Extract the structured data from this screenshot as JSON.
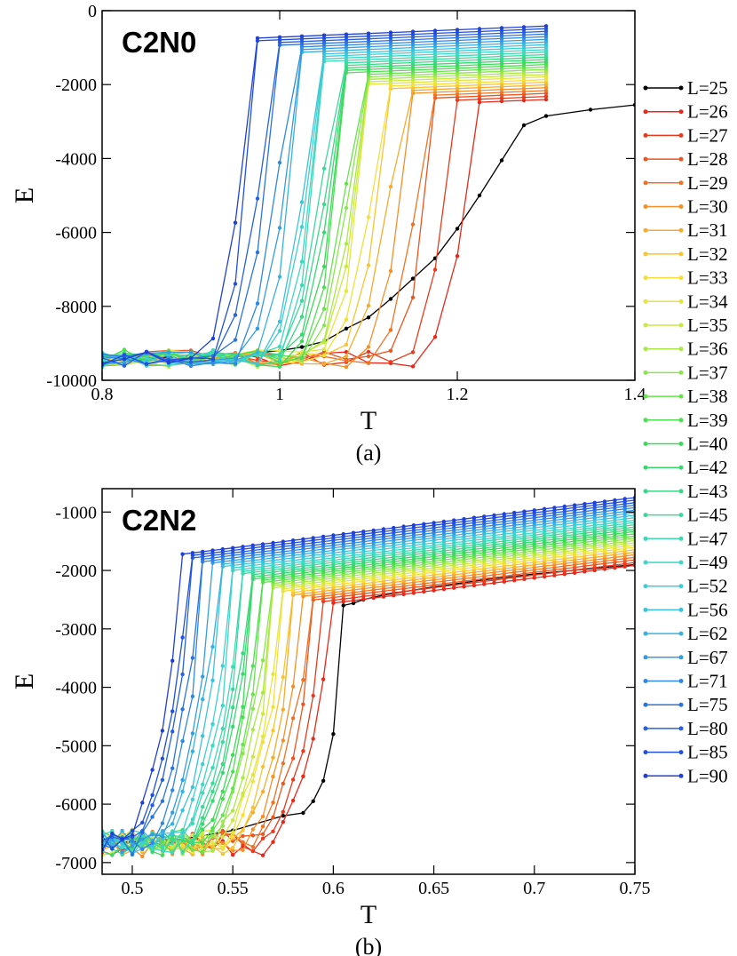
{
  "chart_data": [
    {
      "type": "line",
      "panel_label": "(a)",
      "title": "C2N0",
      "xlabel": "T",
      "ylabel": "E",
      "xlim": [
        0.8,
        1.4
      ],
      "ylim": [
        -10000,
        0
      ],
      "xticks": [
        0.8,
        1,
        1.2,
        1.4
      ],
      "xtick_labels": [
        "0.8",
        "1",
        "1.2",
        "1.4"
      ],
      "yticks": [
        -10000,
        -8000,
        -6000,
        -4000,
        -2000,
        0
      ],
      "ytick_labels": [
        "-10000",
        "-8000",
        "-6000",
        "-4000",
        "-2000",
        "0"
      ],
      "curve_model": {
        "kind": "energy_vs_T_transition",
        "T_low": -9450,
        "T_high_start": -2550,
        "T_high_step": 62,
        "T_high_slope": 1000,
        "t_start": 0.8,
        "t_end": 1.3,
        "dt": 0.025
      },
      "series": [
        {
          "name": "L=25",
          "color": "#000000",
          "x": [
            0.8,
            0.85,
            0.9,
            0.95,
            1.0,
            1.025,
            1.05,
            1.075,
            1.1,
            1.125,
            1.15,
            1.175,
            1.2,
            1.225,
            1.25,
            1.275,
            1.3,
            1.35,
            1.4
          ],
          "values": [
            -9450,
            -9400,
            -9350,
            -9300,
            -9200,
            -9100,
            -8950,
            -8600,
            -8300,
            -7800,
            -7250,
            -6700,
            -5900,
            -5000,
            -4050,
            -3100,
            -2850,
            -2680,
            -2550
          ]
        },
        {
          "name": "L=26",
          "color": "#e8281a",
          "transition": 1.215
        },
        {
          "name": "L=27",
          "color": "#e93a1d",
          "transition": 1.195
        },
        {
          "name": "L=28",
          "color": "#ec5520",
          "transition": 1.175
        },
        {
          "name": "L=29",
          "color": "#ef7324",
          "transition": 1.16
        },
        {
          "name": "L=30",
          "color": "#f49028",
          "transition": 1.145
        },
        {
          "name": "L=31",
          "color": "#f7ab2c",
          "transition": 1.13
        },
        {
          "name": "L=32",
          "color": "#fac431",
          "transition": 1.12
        },
        {
          "name": "L=33",
          "color": "#f6de3a",
          "transition": 1.11
        },
        {
          "name": "L=34",
          "color": "#e4e63e",
          "transition": 1.1
        },
        {
          "name": "L=35",
          "color": "#c8e842",
          "transition": 1.095
        },
        {
          "name": "L=36",
          "color": "#a9e848",
          "transition": 1.09
        },
        {
          "name": "L=37",
          "color": "#8ae64c",
          "transition": 1.085
        },
        {
          "name": "L=38",
          "color": "#66e24e",
          "transition": 1.08
        },
        {
          "name": "L=39",
          "color": "#4ede52",
          "transition": 1.075
        },
        {
          "name": "L=40",
          "color": "#3bda58",
          "transition": 1.07
        },
        {
          "name": "L=42",
          "color": "#38d870",
          "transition": 1.065
        },
        {
          "name": "L=43",
          "color": "#3ad886",
          "transition": 1.06
        },
        {
          "name": "L=45",
          "color": "#3cd89c",
          "transition": 1.055
        },
        {
          "name": "L=47",
          "color": "#3ed8b2",
          "transition": 1.05
        },
        {
          "name": "L=49",
          "color": "#3ed6c4",
          "transition": 1.045
        },
        {
          "name": "L=52",
          "color": "#3ecfd5",
          "transition": 1.04
        },
        {
          "name": "L=56",
          "color": "#3cc2dd",
          "transition": 1.035
        },
        {
          "name": "L=62",
          "color": "#38b0e2",
          "transition": 1.025
        },
        {
          "name": "L=67",
          "color": "#339de4",
          "transition": 1.015
        },
        {
          "name": "L=71",
          "color": "#2e88e4",
          "transition": 1.005
        },
        {
          "name": "L=75",
          "color": "#2a73e2",
          "transition": 0.995
        },
        {
          "name": "L=80",
          "color": "#2660e0",
          "transition": 0.985
        },
        {
          "name": "L=85",
          "color": "#2250de",
          "transition": 0.975
        },
        {
          "name": "L=90",
          "color": "#1f40da",
          "transition": 0.965
        }
      ]
    },
    {
      "type": "line",
      "panel_label": "(b)",
      "title": "C2N2",
      "xlabel": "T",
      "ylabel": "E",
      "xlim": [
        0.485,
        0.75
      ],
      "ylim": [
        -7200,
        -600
      ],
      "xticks": [
        0.5,
        0.55,
        0.6,
        0.65,
        0.7,
        0.75
      ],
      "xtick_labels": [
        "0.5",
        "0.55",
        "0.6",
        "0.65",
        "0.7",
        "0.75"
      ],
      "yticks": [
        -7000,
        -6000,
        -5000,
        -4000,
        -3000,
        -2000,
        -1000
      ],
      "ytick_labels": [
        "-7000",
        "-6000",
        "-5000",
        "-4000",
        "-3000",
        "-2000",
        "-1000"
      ],
      "curve_model": {
        "kind": "energy_vs_T_transition",
        "T_low": -6700,
        "T_high_start": -2600,
        "T_high_step": 30,
        "T_high_slope": 4300,
        "t_start": 0.485,
        "t_end": 0.75,
        "dt": 0.005
      },
      "series": [
        {
          "name": "L=25",
          "color": "#000000",
          "x": [
            0.485,
            0.5,
            0.525,
            0.55,
            0.575,
            0.585,
            0.59,
            0.595,
            0.6,
            0.605,
            0.61,
            0.615,
            0.62,
            0.625,
            0.65,
            0.675,
            0.7,
            0.725,
            0.75
          ],
          "values": [
            -6650,
            -6650,
            -6600,
            -6450,
            -6200,
            -6150,
            -5950,
            -5600,
            -4800,
            -2600,
            -2560,
            -2500,
            -2460,
            -2420,
            -2280,
            -2160,
            -2060,
            -1980,
            -1900
          ]
        },
        {
          "name": "L=26",
          "color": "#e8281a",
          "transition": 0.597
        },
        {
          "name": "L=27",
          "color": "#e93a1d",
          "transition": 0.593
        },
        {
          "name": "L=28",
          "color": "#ec5520",
          "transition": 0.589
        },
        {
          "name": "L=29",
          "color": "#ef7324",
          "transition": 0.586
        },
        {
          "name": "L=30",
          "color": "#f49028",
          "transition": 0.583
        },
        {
          "name": "L=31",
          "color": "#f7ab2c",
          "transition": 0.58
        },
        {
          "name": "L=32",
          "color": "#fac431",
          "transition": 0.577
        },
        {
          "name": "L=33",
          "color": "#f6de3a",
          "transition": 0.574
        },
        {
          "name": "L=34",
          "color": "#e4e63e",
          "transition": 0.572
        },
        {
          "name": "L=35",
          "color": "#c8e842",
          "transition": 0.57
        },
        {
          "name": "L=36",
          "color": "#a9e848",
          "transition": 0.568
        },
        {
          "name": "L=37",
          "color": "#8ae64c",
          "transition": 0.566
        },
        {
          "name": "L=38",
          "color": "#66e24e",
          "transition": 0.564
        },
        {
          "name": "L=39",
          "color": "#4ede52",
          "transition": 0.562
        },
        {
          "name": "L=40",
          "color": "#3bda58",
          "transition": 0.56
        },
        {
          "name": "L=42",
          "color": "#38d870",
          "transition": 0.558
        },
        {
          "name": "L=43",
          "color": "#3ad886",
          "transition": 0.556
        },
        {
          "name": "L=45",
          "color": "#3cd89c",
          "transition": 0.554
        },
        {
          "name": "L=47",
          "color": "#3ed8b2",
          "transition": 0.552
        },
        {
          "name": "L=49",
          "color": "#3ed6c4",
          "transition": 0.55
        },
        {
          "name": "L=52",
          "color": "#3ecfd5",
          "transition": 0.547
        },
        {
          "name": "L=56",
          "color": "#3cc2dd",
          "transition": 0.544
        },
        {
          "name": "L=62",
          "color": "#38b0e2",
          "transition": 0.541
        },
        {
          "name": "L=67",
          "color": "#339de4",
          "transition": 0.538
        },
        {
          "name": "L=71",
          "color": "#2e88e4",
          "transition": 0.535
        },
        {
          "name": "L=75",
          "color": "#2a73e2",
          "transition": 0.532
        },
        {
          "name": "L=80",
          "color": "#2660e0",
          "transition": 0.529
        },
        {
          "name": "L=85",
          "color": "#2250de",
          "transition": 0.526
        },
        {
          "name": "L=90",
          "color": "#1f40da",
          "transition": 0.523
        }
      ]
    }
  ],
  "legend": {
    "placement": "right",
    "entries": [
      "L=25",
      "L=26",
      "L=27",
      "L=28",
      "L=29",
      "L=30",
      "L=31",
      "L=32",
      "L=33",
      "L=34",
      "L=35",
      "L=36",
      "L=37",
      "L=38",
      "L=39",
      "L=40",
      "L=42",
      "L=43",
      "L=45",
      "L=47",
      "L=49",
      "L=52",
      "L=56",
      "L=62",
      "L=67",
      "L=71",
      "L=75",
      "L=80",
      "L=85",
      "L=90"
    ]
  }
}
